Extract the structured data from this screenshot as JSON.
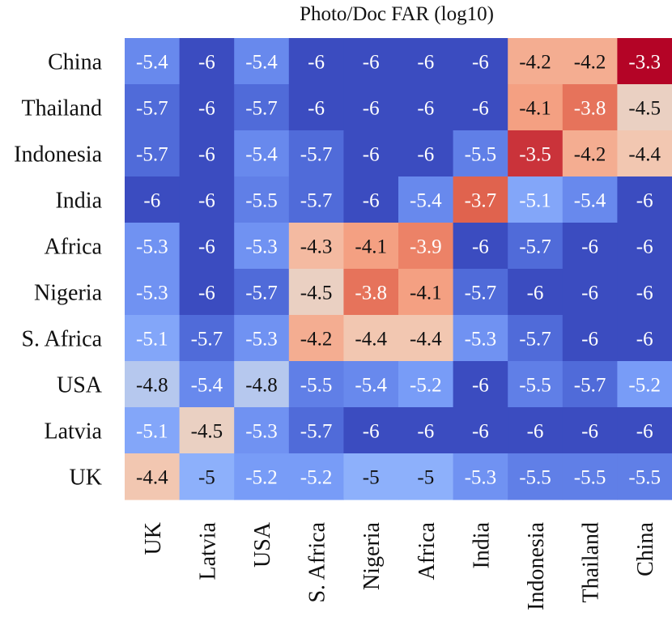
{
  "chart_data": {
    "type": "heatmap",
    "title": "Photo/Doc FAR (log10)",
    "xlabel": "",
    "ylabel": "",
    "x_categories": [
      "UK",
      "Latvia",
      "USA",
      "S. Africa",
      "Nigeria",
      "Africa",
      "India",
      "Indonesia",
      "Thailand",
      "China"
    ],
    "y_categories": [
      "China",
      "Thailand",
      "Indonesia",
      "India",
      "Africa",
      "Nigeria",
      "S. Africa",
      "USA",
      "Latvia",
      "UK"
    ],
    "values": [
      [
        "-5.4",
        "-6",
        "-5.4",
        "-6",
        "-6",
        "-6",
        "-6",
        "-4.2",
        "-4.2",
        "-3.3"
      ],
      [
        "-5.7",
        "-6",
        "-5.7",
        "-6",
        "-6",
        "-6",
        "-6",
        "-4.1",
        "-3.8",
        "-4.5"
      ],
      [
        "-5.7",
        "-6",
        "-5.4",
        "-5.7",
        "-6",
        "-6",
        "-5.5",
        "-3.5",
        "-4.2",
        "-4.4"
      ],
      [
        "-6",
        "-6",
        "-5.5",
        "-5.7",
        "-6",
        "-5.4",
        "-3.7",
        "-5.1",
        "-5.4",
        "-6"
      ],
      [
        "-5.3",
        "-6",
        "-5.3",
        "-4.3",
        "-4.1",
        "-3.9",
        "-6",
        "-5.7",
        "-6",
        "-6"
      ],
      [
        "-5.3",
        "-6",
        "-5.7",
        "-4.5",
        "-3.8",
        "-4.1",
        "-5.7",
        "-6",
        "-6",
        "-6"
      ],
      [
        "-5.1",
        "-5.7",
        "-5.3",
        "-4.2",
        "-4.4",
        "-4.4",
        "-5.3",
        "-5.7",
        "-6",
        "-6"
      ],
      [
        "-4.8",
        "-5.4",
        "-4.8",
        "-5.5",
        "-5.4",
        "-5.2",
        "-6",
        "-5.5",
        "-5.7",
        "-5.2"
      ],
      [
        "-5.1",
        "-4.5",
        "-5.3",
        "-5.7",
        "-6",
        "-6",
        "-6",
        "-6",
        "-6",
        "-6"
      ],
      [
        "-4.4",
        "-5",
        "-5.2",
        "-5.2",
        "-5",
        "-5",
        "-5.3",
        "-5.5",
        "-5.5",
        "-5.5"
      ]
    ],
    "color_range": [
      -6,
      -3.3
    ],
    "colormap": "coolwarm",
    "colors": {
      "low": "#3b4cc0",
      "mid": "#dddddd",
      "high": "#b40426"
    },
    "annotated": true
  }
}
